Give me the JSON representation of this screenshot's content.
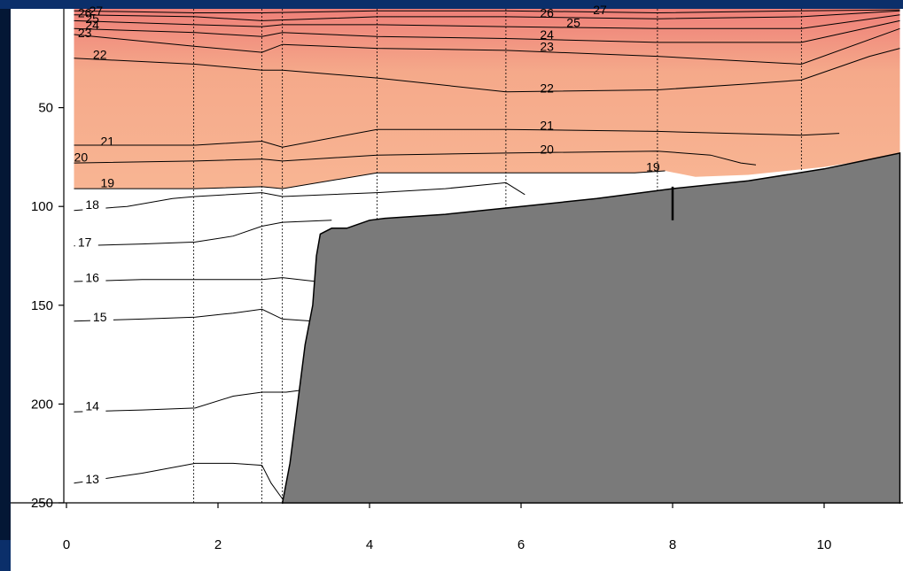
{
  "chart_data": {
    "type": "contour",
    "title": "",
    "xlabel": "",
    "ylabel": "",
    "xlim": [
      0,
      11
    ],
    "ylim": [
      250,
      0
    ],
    "y_reversed": true,
    "x_ticks": [
      0,
      2,
      4,
      6,
      8,
      10
    ],
    "y_ticks": [
      50,
      100,
      150,
      200,
      250
    ],
    "colors": {
      "warm_fill": "#f5a98a",
      "warm_fill_top": "#ee7f78",
      "seafloor": "#7a7a7a",
      "background": "#ffffff",
      "frame": "#0b2f6a"
    },
    "shaded_threshold": 19,
    "station_x": [
      1.68,
      2.58,
      2.85,
      4.1,
      5.8,
      7.8,
      9.7
    ],
    "bottom_profile": [
      [
        2.85,
        250
      ],
      [
        2.95,
        230
      ],
      [
        3.05,
        200
      ],
      [
        3.15,
        170
      ],
      [
        3.2,
        160
      ],
      [
        3.25,
        150
      ],
      [
        3.3,
        125
      ],
      [
        3.35,
        114
      ],
      [
        3.5,
        111
      ],
      [
        3.7,
        111
      ],
      [
        4.0,
        107
      ],
      [
        4.2,
        106
      ],
      [
        5.0,
        104
      ],
      [
        6.0,
        100
      ],
      [
        7.0,
        96
      ],
      [
        8.0,
        91
      ],
      [
        9.0,
        87
      ],
      [
        10.0,
        81
      ],
      [
        10.5,
        77
      ],
      [
        11.0,
        73
      ]
    ],
    "contours": [
      {
        "level": 13,
        "points": [
          [
            0.1,
            240
          ],
          [
            1.0,
            235
          ],
          [
            1.7,
            230
          ],
          [
            2.2,
            230
          ],
          [
            2.58,
            231
          ],
          [
            2.7,
            240
          ],
          [
            2.85,
            248
          ]
        ]
      },
      {
        "level": 14,
        "points": [
          [
            0.1,
            204
          ],
          [
            1.0,
            203
          ],
          [
            1.7,
            202
          ],
          [
            2.2,
            196
          ],
          [
            2.58,
            194
          ],
          [
            2.9,
            194
          ],
          [
            3.1,
            193
          ]
        ]
      },
      {
        "level": 15,
        "points": [
          [
            0.1,
            158
          ],
          [
            1.0,
            157
          ],
          [
            1.7,
            156
          ],
          [
            2.2,
            154
          ],
          [
            2.58,
            152
          ],
          [
            2.85,
            157
          ],
          [
            3.25,
            158
          ]
        ]
      },
      {
        "level": 16,
        "points": [
          [
            0.1,
            138
          ],
          [
            1.0,
            137
          ],
          [
            2.58,
            137
          ],
          [
            2.85,
            136
          ],
          [
            3.3,
            138
          ]
        ]
      },
      {
        "level": 17,
        "points": [
          [
            0.1,
            120
          ],
          [
            1.0,
            119
          ],
          [
            1.7,
            118
          ],
          [
            2.2,
            115
          ],
          [
            2.58,
            110
          ],
          [
            2.85,
            108
          ],
          [
            3.5,
            107
          ]
        ]
      },
      {
        "level": 18,
        "points": [
          [
            0.1,
            102
          ],
          [
            0.8,
            100
          ],
          [
            1.4,
            96
          ],
          [
            1.7,
            95
          ],
          [
            2.58,
            93
          ],
          [
            2.85,
            95
          ],
          [
            4.1,
            93
          ],
          [
            5.0,
            91
          ],
          [
            5.8,
            88
          ],
          [
            6.05,
            94
          ]
        ]
      },
      {
        "level": 19,
        "points": [
          [
            0.1,
            91
          ],
          [
            1.7,
            91
          ],
          [
            2.58,
            90
          ],
          [
            2.85,
            91
          ],
          [
            4.1,
            83
          ],
          [
            5.8,
            83
          ],
          [
            6.5,
            83
          ],
          [
            7.5,
            83
          ],
          [
            7.9,
            82
          ]
        ]
      },
      {
        "level": 20,
        "points": [
          [
            0.1,
            78
          ],
          [
            1.7,
            77
          ],
          [
            2.58,
            76
          ],
          [
            2.85,
            77
          ],
          [
            4.1,
            74
          ],
          [
            5.8,
            73
          ],
          [
            7.8,
            72
          ],
          [
            8.5,
            74
          ],
          [
            8.9,
            78
          ],
          [
            9.1,
            79
          ]
        ]
      },
      {
        "level": 21,
        "points": [
          [
            0.1,
            69
          ],
          [
            1.7,
            69
          ],
          [
            2.58,
            67
          ],
          [
            2.85,
            70
          ],
          [
            4.1,
            61
          ],
          [
            5.8,
            61
          ],
          [
            7.8,
            62
          ],
          [
            9.7,
            64
          ],
          [
            10.2,
            63
          ]
        ]
      },
      {
        "level": 22,
        "points": [
          [
            0.1,
            25
          ],
          [
            1.7,
            28
          ],
          [
            2.58,
            31
          ],
          [
            2.85,
            31
          ],
          [
            4.1,
            35
          ],
          [
            5.8,
            42
          ],
          [
            7.8,
            41
          ],
          [
            9.0,
            38
          ],
          [
            9.7,
            36
          ],
          [
            10.6,
            24
          ],
          [
            11.0,
            20
          ]
        ]
      },
      {
        "level": 23,
        "points": [
          [
            0.1,
            13
          ],
          [
            1.7,
            19
          ],
          [
            2.58,
            22
          ],
          [
            2.85,
            18
          ],
          [
            4.1,
            20
          ],
          [
            5.8,
            21
          ],
          [
            7.8,
            24
          ],
          [
            9.7,
            28
          ],
          [
            11.0,
            10
          ]
        ]
      },
      {
        "level": 24,
        "points": [
          [
            0.1,
            10
          ],
          [
            1.7,
            12
          ],
          [
            2.58,
            14
          ],
          [
            2.85,
            12
          ],
          [
            4.1,
            14
          ],
          [
            5.8,
            15
          ],
          [
            7.8,
            17
          ],
          [
            9.7,
            17
          ],
          [
            11.0,
            6
          ]
        ]
      },
      {
        "level": 25,
        "points": [
          [
            0.1,
            6
          ],
          [
            1.7,
            8
          ],
          [
            2.58,
            9
          ],
          [
            2.85,
            8
          ],
          [
            4.1,
            8
          ],
          [
            5.8,
            9
          ],
          [
            7.8,
            10
          ],
          [
            9.7,
            10
          ],
          [
            11.0,
            3
          ]
        ]
      },
      {
        "level": 26,
        "points": [
          [
            0.1,
            3
          ],
          [
            1.7,
            4
          ],
          [
            2.58,
            6
          ],
          [
            4.1,
            4
          ],
          [
            5.8,
            4
          ],
          [
            7.8,
            5
          ],
          [
            9.7,
            4
          ],
          [
            11.0,
            1
          ]
        ]
      },
      {
        "level": 27,
        "points": [
          [
            0.1,
            1
          ],
          [
            1.7,
            2
          ],
          [
            2.58,
            2
          ],
          [
            4.1,
            1
          ],
          [
            5.8,
            1
          ],
          [
            7.8,
            2
          ],
          [
            9.7,
            1
          ],
          [
            11.0,
            0.5
          ]
        ]
      }
    ],
    "contour_labels": [
      {
        "text": "13",
        "x": 0.25,
        "y": 238
      },
      {
        "text": "14",
        "x": 0.25,
        "y": 201
      },
      {
        "text": "15",
        "x": 0.35,
        "y": 156
      },
      {
        "text": "16",
        "x": 0.25,
        "y": 136
      },
      {
        "text": "17",
        "x": 0.15,
        "y": 118
      },
      {
        "text": "18",
        "x": 0.25,
        "y": 99
      },
      {
        "text": "19",
        "x": 0.45,
        "y": 88
      },
      {
        "text": "20",
        "x": 0.1,
        "y": 75
      },
      {
        "text": "21",
        "x": 0.45,
        "y": 67
      },
      {
        "text": "22",
        "x": 0.35,
        "y": 23
      },
      {
        "text": "23",
        "x": 0.15,
        "y": 12
      },
      {
        "text": "24",
        "x": 0.25,
        "y": 8
      },
      {
        "text": "25",
        "x": 0.25,
        "y": 5
      },
      {
        "text": "26",
        "x": 0.15,
        "y": 2
      },
      {
        "text": "27",
        "x": 0.3,
        "y": 1
      },
      {
        "text": "20",
        "x": 6.25,
        "y": 71
      },
      {
        "text": "21",
        "x": 6.25,
        "y": 59
      },
      {
        "text": "22",
        "x": 6.25,
        "y": 40
      },
      {
        "text": "23",
        "x": 6.25,
        "y": 19
      },
      {
        "text": "24",
        "x": 6.25,
        "y": 13
      },
      {
        "text": "25",
        "x": 6.6,
        "y": 7
      },
      {
        "text": "26",
        "x": 6.25,
        "y": 2
      },
      {
        "text": "27",
        "x": 6.95,
        "y": 0.5
      },
      {
        "text": "19",
        "x": 7.65,
        "y": 80
      }
    ]
  }
}
